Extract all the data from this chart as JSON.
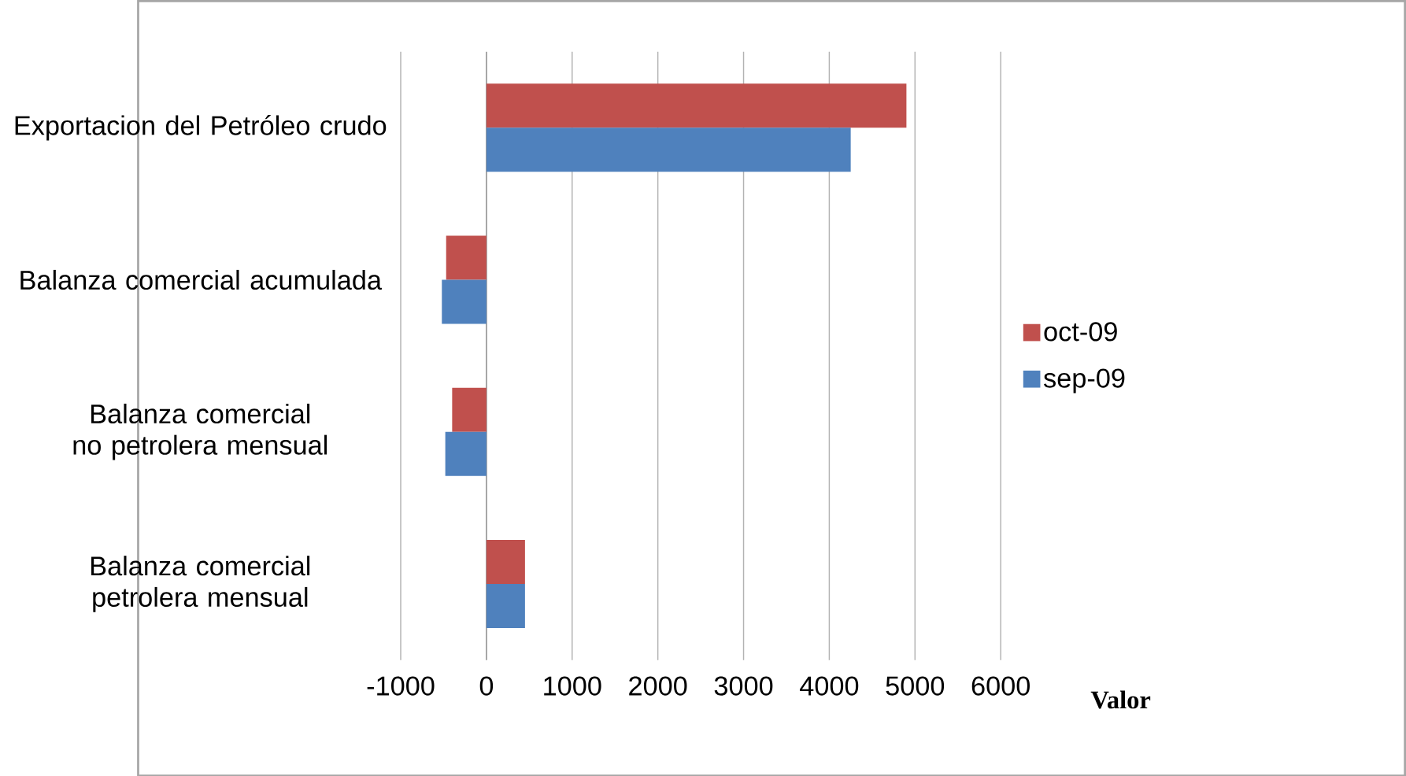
{
  "chart_data": {
    "type": "bar",
    "orientation": "horizontal",
    "xlabel": "Valor",
    "categories": [
      "Exportacion del Petróleo crudo",
      "Balanza comercial acumulada",
      "Balanza comercial no petrolera mensual",
      "Balanza comercial petrolera mensual"
    ],
    "series": [
      {
        "name": "oct-09",
        "color": "#c0504d",
        "values": [
          4900,
          -470,
          -400,
          450
        ]
      },
      {
        "name": "sep-09",
        "color": "#4f81bd",
        "values": [
          4250,
          -520,
          -480,
          450
        ]
      }
    ],
    "xlim": [
      -1000,
      6000
    ],
    "xticks": [
      -1000,
      0,
      1000,
      2000,
      3000,
      4000,
      5000,
      6000
    ],
    "grid": "x",
    "legend": "right"
  }
}
